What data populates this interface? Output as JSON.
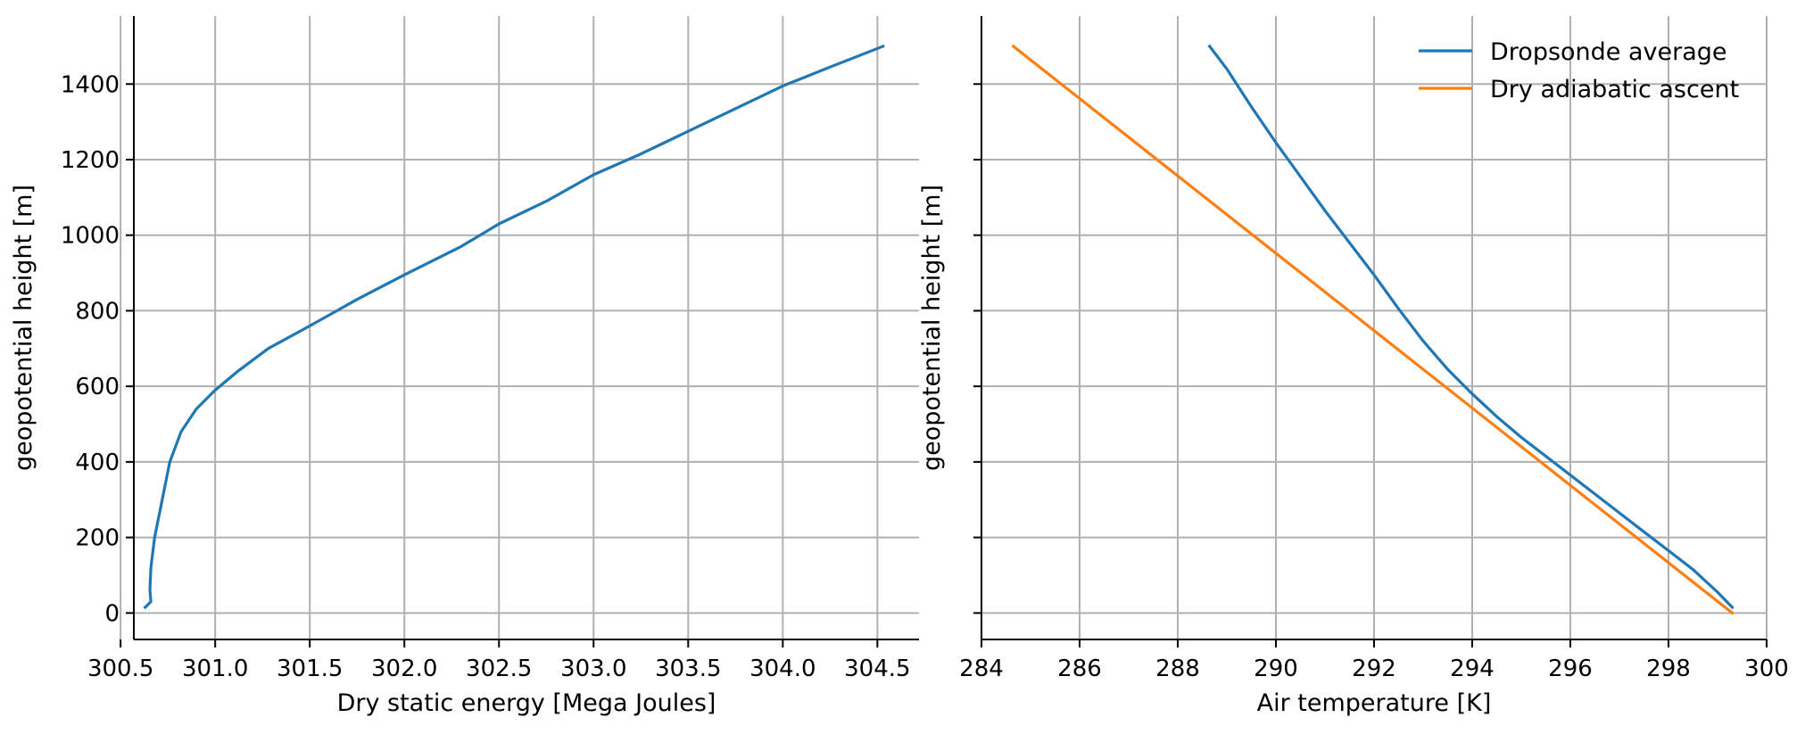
{
  "chart_data": [
    {
      "type": "line",
      "xlabel": "Dry static energy [Mega Joules]",
      "ylabel": "geopotential height [m]",
      "xlim": [
        300.57,
        304.72
      ],
      "ylim": [
        -70,
        1580
      ],
      "xticks": [
        "300.5",
        "301.0",
        "301.5",
        "302.0",
        "302.5",
        "303.0",
        "303.5",
        "304.0",
        "304.5"
      ],
      "yticks": [
        "0",
        "200",
        "400",
        "600",
        "800",
        "1000",
        "1200",
        "1400"
      ],
      "grid": true,
      "series": [
        {
          "name": "",
          "color": "#1f77b4",
          "points": [
            [
              300.63,
              15
            ],
            [
              300.66,
              30
            ],
            [
              300.655,
              60
            ],
            [
              300.66,
              120
            ],
            [
              300.68,
              200
            ],
            [
              300.72,
              300
            ],
            [
              300.76,
              400
            ],
            [
              300.82,
              480
            ],
            [
              300.9,
              540
            ],
            [
              301.0,
              590
            ],
            [
              301.12,
              640
            ],
            [
              301.28,
              700
            ],
            [
              301.5,
              760
            ],
            [
              301.75,
              830
            ],
            [
              302.0,
              895
            ],
            [
              302.3,
              970
            ],
            [
              302.5,
              1030
            ],
            [
              302.75,
              1090
            ],
            [
              303.0,
              1160
            ],
            [
              303.25,
              1215
            ],
            [
              303.5,
              1275
            ],
            [
              303.75,
              1335
            ],
            [
              304.0,
              1395
            ],
            [
              304.25,
              1445
            ],
            [
              304.53,
              1500
            ]
          ]
        }
      ]
    },
    {
      "type": "line",
      "xlabel": "Air temperature [K]",
      "ylabel": "geopotential height [m]",
      "xlim": [
        284.0,
        300.0
      ],
      "ylim": [
        -70,
        1580
      ],
      "xticks": [
        "284",
        "286",
        "288",
        "290",
        "292",
        "294",
        "296",
        "298",
        "300"
      ],
      "yticks": [],
      "grid": true,
      "legend": "top-right",
      "series": [
        {
          "name": "Dropsonde average",
          "color": "#1f77b4",
          "points": [
            [
              288.65,
              1500
            ],
            [
              289.0,
              1440
            ],
            [
              289.5,
              1340
            ],
            [
              290.0,
              1245
            ],
            [
              290.5,
              1155
            ],
            [
              291.0,
              1065
            ],
            [
              291.5,
              980
            ],
            [
              292.0,
              895
            ],
            [
              292.5,
              805
            ],
            [
              293.0,
              720
            ],
            [
              293.5,
              645
            ],
            [
              294.0,
              580
            ],
            [
              294.5,
              520
            ],
            [
              295.0,
              465
            ],
            [
              295.5,
              415
            ],
            [
              296.0,
              365
            ],
            [
              296.5,
              315
            ],
            [
              297.0,
              265
            ],
            [
              297.5,
              215
            ],
            [
              298.0,
              165
            ],
            [
              298.5,
              115
            ],
            [
              299.0,
              55
            ],
            [
              299.3,
              15
            ]
          ]
        },
        {
          "name": "Dry adiabatic ascent",
          "color": "#ff7f0e",
          "points": [
            [
              284.65,
              1500
            ],
            [
              299.3,
              0
            ]
          ]
        }
      ]
    }
  ]
}
